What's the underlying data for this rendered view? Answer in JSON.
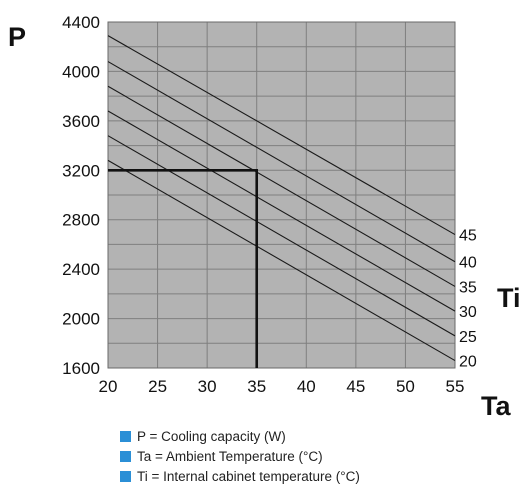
{
  "chart_data": {
    "type": "line",
    "title": "",
    "ylabel": "P",
    "xlabel": "Ta",
    "series_axis_label": "Ti",
    "xlim": [
      20,
      55
    ],
    "ylim": [
      1600,
      4400
    ],
    "x_ticks": [
      20,
      25,
      30,
      35,
      40,
      45,
      50,
      55
    ],
    "y_ticks": [
      1600,
      2000,
      2400,
      2800,
      3200,
      3600,
      4000,
      4400
    ],
    "grid": true,
    "background_color": "#b3b3b3",
    "grid_color": "#7f7f7f",
    "line_color": "#1a1a1a",
    "series": [
      {
        "name": "20",
        "x": [
          20,
          55
        ],
        "y": [
          3280,
          1660
        ]
      },
      {
        "name": "25",
        "x": [
          20,
          55
        ],
        "y": [
          3480,
          1860
        ]
      },
      {
        "name": "30",
        "x": [
          20,
          55
        ],
        "y": [
          3680,
          2060
        ]
      },
      {
        "name": "35",
        "x": [
          20,
          55
        ],
        "y": [
          3880,
          2260
        ]
      },
      {
        "name": "40",
        "x": [
          20,
          55
        ],
        "y": [
          4080,
          2460
        ]
      },
      {
        "name": "45",
        "x": [
          20,
          55
        ],
        "y": [
          4290,
          2680
        ]
      }
    ],
    "annotations": [
      {
        "type": "reference-lines",
        "x": 35,
        "y": 3200,
        "color": "#111111"
      }
    ]
  },
  "legend": {
    "color": "#2b8fd6",
    "items": [
      "P = Cooling capacity (W)",
      "Ta = Ambient Temperature (°C)",
      "Ti = Internal cabinet temperature (°C)"
    ]
  }
}
